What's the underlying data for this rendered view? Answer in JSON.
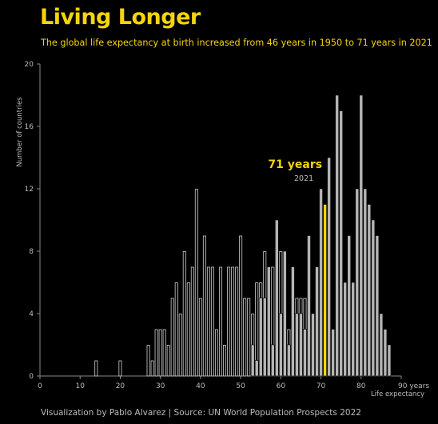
{
  "header": {
    "title": "Living Longer",
    "subtitle": "The global life expectancy at birth increased from 46 years in 1950 to 71 years in 2021"
  },
  "footer": {
    "credit": "Visualization by Pablo Alvarez | Source: UN World Population Prospects 2022"
  },
  "colors": {
    "background": "#000000",
    "accent": "#f5d50b",
    "bars_2021": "#b4b4b4",
    "bars_1950_outline": "#d0d0d0",
    "axis": "#888888",
    "tick_text": "#bbbbbb"
  },
  "chart_data": {
    "type": "bar",
    "xlabel": "Life expectancy",
    "ylabel": "Number of countries",
    "x_unit_suffix": "years",
    "xlim": [
      0,
      90
    ],
    "ylim": [
      0,
      20
    ],
    "x_ticks": [
      0,
      10,
      20,
      30,
      40,
      50,
      60,
      70,
      80,
      90
    ],
    "y_ticks": [
      0,
      4,
      8,
      12,
      16,
      20
    ],
    "bin_width": 1,
    "grid": false,
    "annotation": {
      "value_label": "71 years",
      "year_label": "2021",
      "x": 71,
      "count": 11
    },
    "series": [
      {
        "style": "outline",
        "x": [
          14,
          20,
          27,
          28,
          29,
          30,
          31,
          32,
          33,
          34,
          35,
          36,
          37,
          38,
          39,
          40,
          41,
          42,
          43,
          44,
          45,
          46,
          47,
          48,
          49,
          50,
          51,
          52,
          53,
          54,
          55,
          56,
          57,
          58,
          59,
          60,
          61,
          62,
          63,
          64,
          65,
          66,
          67,
          68,
          69,
          70
        ],
        "values": [
          1,
          1,
          2,
          1,
          3,
          3,
          3,
          2,
          5,
          6,
          4,
          8,
          6,
          7,
          12,
          5,
          9,
          7,
          7,
          3,
          7,
          2,
          7,
          7,
          7,
          9,
          5,
          5,
          4,
          6,
          6,
          8,
          3,
          7,
          3,
          8,
          6,
          3,
          2,
          5,
          5,
          5,
          2,
          3,
          6,
          4
        ]
      },
      {
        "style": "filled",
        "x": [
          53,
          54,
          55,
          56,
          57,
          58,
          59,
          60,
          61,
          62,
          63,
          64,
          65,
          66,
          67,
          68,
          69,
          70,
          71,
          72,
          73,
          74,
          75,
          76,
          77,
          78,
          79,
          80,
          81,
          82,
          83,
          84,
          85,
          86,
          87
        ],
        "values": [
          2,
          1,
          5,
          5,
          7,
          2,
          10,
          4,
          8,
          2,
          7,
          4,
          4,
          3,
          9,
          4,
          7,
          12,
          11,
          14,
          3,
          18,
          17,
          6,
          9,
          6,
          12,
          18,
          12,
          11,
          10,
          9,
          4,
          3,
          2
        ]
      }
    ],
    "highlight": {
      "x": 71,
      "value": 11
    }
  }
}
